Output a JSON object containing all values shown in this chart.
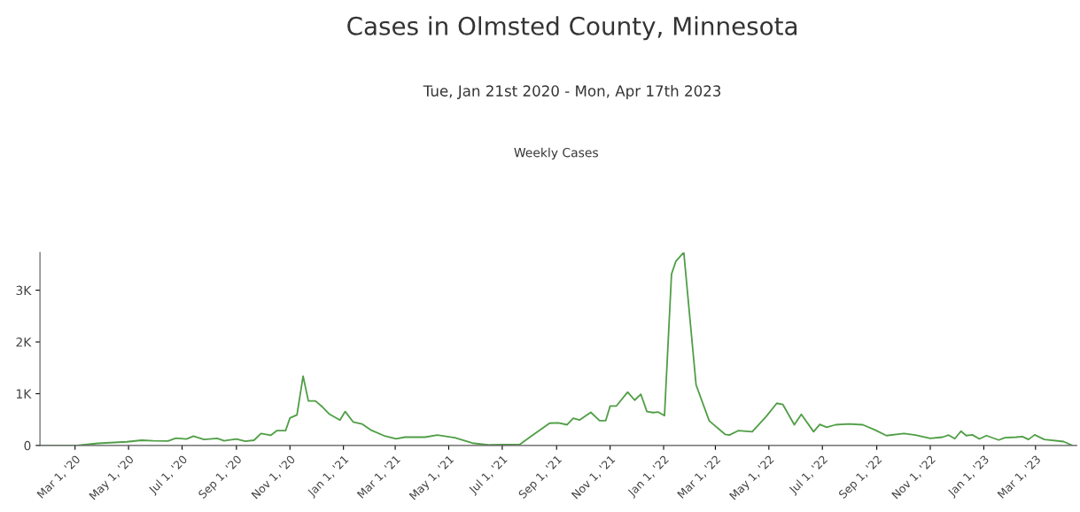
{
  "chart_data": {
    "type": "line",
    "title": "Cases in Olmsted County, Minnesota",
    "subtitle": "Tue, Jan 21st 2020 - Mon, Apr 17th 2023",
    "annotations": [
      "Weekly Cases"
    ],
    "x": [
      "2020-01-21",
      "2020-03-03",
      "2020-03-27",
      "2020-04-29",
      "2020-05-16",
      "2020-05-29",
      "2020-06-15",
      "2020-06-24",
      "2020-07-06",
      "2020-07-14",
      "2020-07-26",
      "2020-08-10",
      "2020-08-18",
      "2020-09-01",
      "2020-09-11",
      "2020-09-21",
      "2020-09-29",
      "2020-10-10",
      "2020-10-17",
      "2020-10-27",
      "2020-11-01",
      "2020-11-09",
      "2020-11-16",
      "2020-11-22",
      "2020-11-30",
      "2020-12-07",
      "2020-12-16",
      "2020-12-28",
      "2021-01-03",
      "2021-01-12",
      "2021-01-22",
      "2021-02-01",
      "2021-02-16",
      "2021-03-02",
      "2021-03-12",
      "2021-04-04",
      "2021-04-18",
      "2021-05-08",
      "2021-05-28",
      "2021-06-17",
      "2021-07-21",
      "2021-08-04",
      "2021-08-24",
      "2021-09-03",
      "2021-09-13",
      "2021-09-20",
      "2021-09-27",
      "2021-10-10",
      "2021-10-20",
      "2021-10-27",
      "2021-11-01",
      "2021-11-08",
      "2021-11-21",
      "2021-11-29",
      "2021-12-06",
      "2021-12-13",
      "2021-12-20",
      "2021-12-26",
      "2022-01-02",
      "2022-01-10",
      "2022-01-15",
      "2022-01-24",
      "2022-02-07",
      "2022-02-22",
      "2022-03-12",
      "2022-03-17",
      "2022-03-27",
      "2022-04-12",
      "2022-04-28",
      "2022-05-10",
      "2022-05-17",
      "2022-05-30",
      "2022-06-07",
      "2022-06-21",
      "2022-06-28",
      "2022-07-06",
      "2022-07-16",
      "2022-07-31",
      "2022-08-16",
      "2022-08-30",
      "2022-09-12",
      "2022-10-02",
      "2022-10-15",
      "2022-11-01",
      "2022-11-15",
      "2022-11-22",
      "2022-11-29",
      "2022-12-06",
      "2022-12-12",
      "2022-12-19",
      "2022-12-27",
      "2023-01-04",
      "2023-01-18",
      "2023-01-25",
      "2023-02-07",
      "2023-02-14",
      "2023-02-21",
      "2023-02-28",
      "2023-03-11",
      "2023-04-02",
      "2023-04-12"
    ],
    "series": [
      {
        "color": "#4f9e45",
        "values": [
          0,
          0,
          40,
          70,
          100,
          90,
          85,
          140,
          125,
          180,
          115,
          135,
          90,
          125,
          80,
          100,
          230,
          195,
          285,
          285,
          530,
          590,
          1340,
          860,
          860,
          760,
          605,
          490,
          655,
          455,
          415,
          300,
          190,
          130,
          160,
          160,
          200,
          150,
          45,
          10,
          20,
          190,
          430,
          435,
          400,
          525,
          490,
          640,
          480,
          480,
          760,
          760,
          1030,
          875,
          990,
          655,
          635,
          645,
          575,
          3310,
          3560,
          3730,
          1170,
          475,
          215,
          200,
          285,
          265,
          560,
          815,
          790,
          400,
          600,
          265,
          405,
          350,
          400,
          415,
          400,
          300,
          190,
          230,
          200,
          135,
          160,
          200,
          130,
          275,
          190,
          205,
          125,
          190,
          105,
          150,
          160,
          170,
          115,
          205,
          115,
          75,
          0
        ]
      }
    ],
    "xlim": [
      "2020-01-21",
      "2023-04-17"
    ],
    "xticks": [
      {
        "value": "2020-03-01",
        "label": "Mar 1, '20"
      },
      {
        "value": "2020-05-01",
        "label": "May 1, '20"
      },
      {
        "value": "2020-07-01",
        "label": "Jul 1, '20"
      },
      {
        "value": "2020-09-01",
        "label": "Sep 1, '20"
      },
      {
        "value": "2020-11-01",
        "label": "Nov 1, '20"
      },
      {
        "value": "2021-01-01",
        "label": "Jan 1, '21"
      },
      {
        "value": "2021-03-01",
        "label": "Mar 1, '21"
      },
      {
        "value": "2021-05-01",
        "label": "May 1, '21"
      },
      {
        "value": "2021-07-01",
        "label": "Jul 1, '21"
      },
      {
        "value": "2021-09-01",
        "label": "Sep 1, '21"
      },
      {
        "value": "2021-11-01",
        "label": "Nov 1, '21"
      },
      {
        "value": "2022-01-01",
        "label": "Jan 1, '22"
      },
      {
        "value": "2022-03-01",
        "label": "Mar 1, '22"
      },
      {
        "value": "2022-05-01",
        "label": "May 1, '22"
      },
      {
        "value": "2022-07-01",
        "label": "Jul 1, '22"
      },
      {
        "value": "2022-09-01",
        "label": "Sep 1, '22"
      },
      {
        "value": "2022-11-01",
        "label": "Nov 1, '22"
      },
      {
        "value": "2023-01-01",
        "label": "Jan 1, '23"
      },
      {
        "value": "2023-03-01",
        "label": "Mar 1, '23"
      }
    ],
    "ylim": [
      0,
      3730
    ],
    "yticks": [
      0,
      {
        "value": 1000,
        "label": "1K"
      },
      {
        "value": 2000,
        "label": "2K"
      },
      {
        "value": 3000,
        "label": "3K"
      }
    ],
    "grid": false,
    "marker": "none",
    "line_style": "solid"
  }
}
